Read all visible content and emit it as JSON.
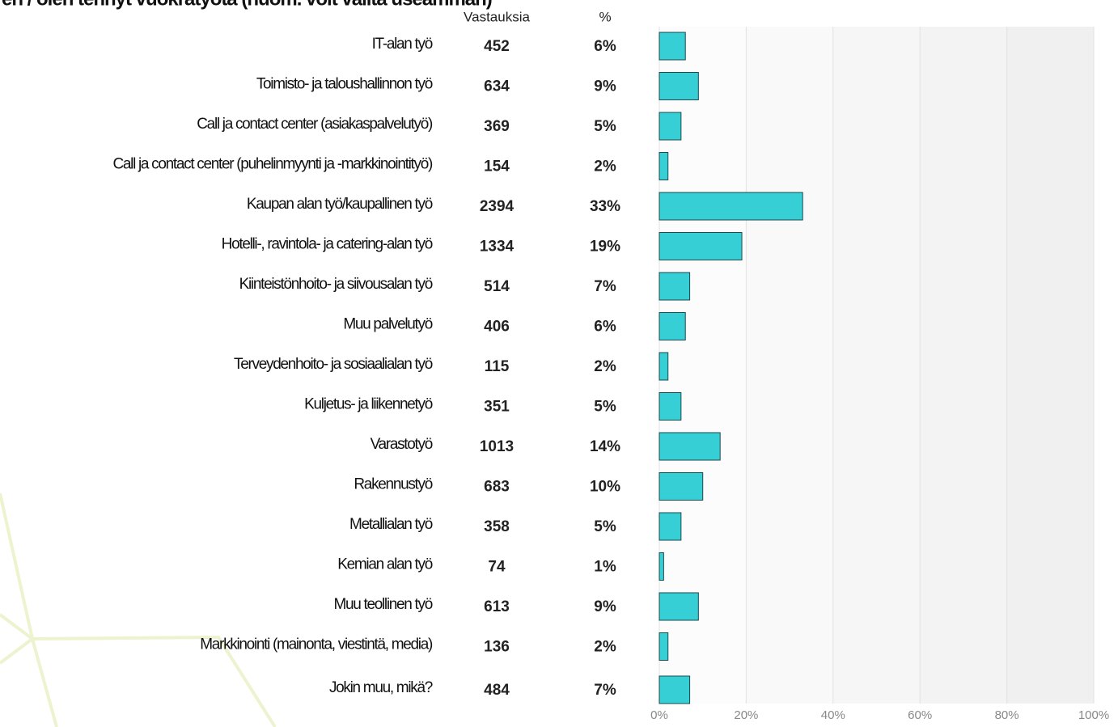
{
  "chart_data": {
    "type": "bar",
    "title": "en / olen tehnyt vuokratyötä (huom. voit valita useamman)",
    "count_header": "Vastauksia",
    "percent_header": "%",
    "categories": [
      "IT-alan työ",
      "Toimisto- ja taloushallinnon työ",
      "Call ja contact center (asiakaspalvelutyö)",
      "Call ja contact center (puhelinmyynti ja -markkinointityö)",
      "Kaupan alan työ/kaupallinen työ",
      "Hotelli-, ravintola- ja catering-alan työ",
      "Kiinteistönhoito- ja siivousalan työ",
      "Muu palvelutyö",
      "Terveydenhoito- ja sosiaalialan työ",
      "Kuljetus- ja liikennetyö",
      "Varastotyö",
      "Rakennustyö",
      "Metallialan työ",
      "Kemian alan työ",
      "Muu teollinen työ",
      "Markkinointi (mainonta, viestintä, media)",
      "Jokin muu, mikä?"
    ],
    "counts": [
      452,
      634,
      369,
      154,
      2394,
      1334,
      514,
      406,
      115,
      351,
      1013,
      683,
      358,
      74,
      613,
      136,
      484
    ],
    "values": [
      6,
      9,
      5,
      2,
      33,
      19,
      7,
      6,
      2,
      5,
      14,
      10,
      5,
      1,
      9,
      2,
      7
    ],
    "value_labels": [
      "6%",
      "9%",
      "5%",
      "2%",
      "33%",
      "19%",
      "7%",
      "6%",
      "2%",
      "5%",
      "14%",
      "10%",
      "5%",
      "1%",
      "9%",
      "2%",
      "7%"
    ],
    "color": "#36cfd6",
    "xlim": [
      0,
      100
    ],
    "xticks": [
      {
        "value": 0,
        "label": "0%"
      },
      {
        "value": 20,
        "label": "20%"
      },
      {
        "value": 40,
        "label": "40%"
      },
      {
        "value": 60,
        "label": "60%"
      },
      {
        "value": 80,
        "label": "80%"
      },
      {
        "value": 100,
        "label": "100%"
      }
    ],
    "grid": true
  }
}
